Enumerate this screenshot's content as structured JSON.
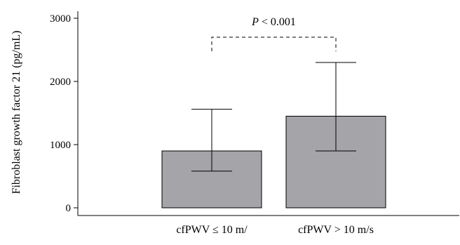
{
  "chart_data": {
    "type": "bar",
    "categories": [
      "cfPWV ≤ 10 m/",
      "cfPWV > 10 m/s"
    ],
    "values": [
      900,
      1450
    ],
    "error_low": [
      580,
      900
    ],
    "error_high": [
      1560,
      2300
    ],
    "title": "",
    "xlabel": "",
    "ylabel": "Fibroblast growth factor 21 (pg/mL)",
    "ylim": [
      0,
      3000
    ],
    "yticks": [
      0,
      1000,
      2000,
      3000
    ],
    "grid": false,
    "bar_color": "#a4a4a9",
    "annotation": {
      "p_symbol": "P",
      "p_rest": " < 0.001",
      "bracket_level": 2700
    }
  }
}
